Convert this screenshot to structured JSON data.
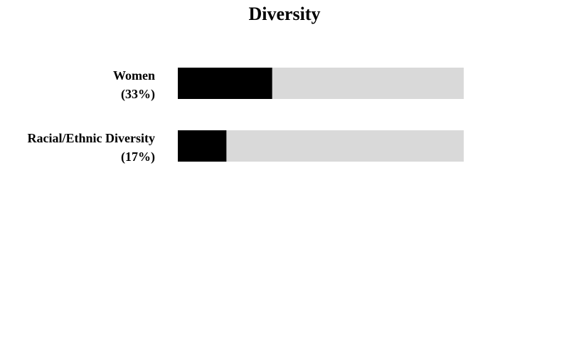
{
  "chart_data": {
    "type": "bar",
    "orientation": "horizontal",
    "title": "Diversity",
    "categories": [
      "Women",
      "Racial/Ethnic Diversity"
    ],
    "values": [
      33,
      17
    ],
    "value_labels": [
      "(33%)",
      "(17%)"
    ],
    "color": "#000000",
    "track_color": "#d9d9d9",
    "xlim": [
      0,
      100
    ]
  }
}
